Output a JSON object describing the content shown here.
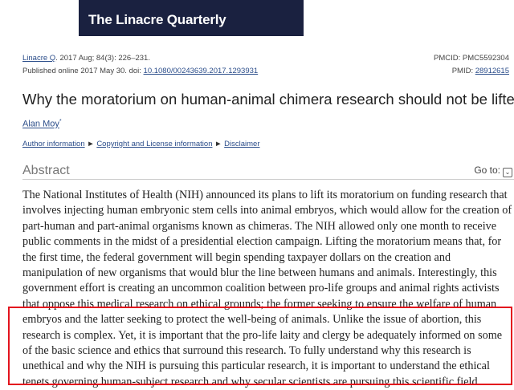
{
  "journal_banner": "The Linacre Quarterly",
  "citation": {
    "journal_link": "Linacre Q",
    "journal_rest": ". 2017 Aug; 84(3): 226–231.",
    "published_prefix": "Published online 2017 May 30. doi: ",
    "doi": "10.1080/00243639.2017.1293931",
    "pmcid": "PMCID: PMC5592304",
    "pmid_label": "PMID: ",
    "pmid": "28912615"
  },
  "article_title": "Why the moratorium on human-animal chimera research should not be lifted",
  "author": "Alan Moy",
  "author_mark": "*",
  "links": {
    "author_info": "Author information",
    "copyright": "Copyright and License information",
    "disclaimer": "Disclaimer",
    "separator": " ► "
  },
  "abstract": {
    "heading": "Abstract",
    "goto_label": "Go to:",
    "goto_icon": "chevron-down-icon",
    "lines": [
      "The National Institutes of Health (NIH) announced its plans to lift its moratorium on funding research that",
      "involves injecting human embryonic stem cells into animal embryos, which would allow for the creation of",
      "part-human and part-animal organisms known as chimeras. The NIH allowed only one month to receive",
      "public comments in the midst of a presidential election campaign. Lifting the moratorium means that, for",
      "the first time, the federal government will begin spending taxpayer dollars on the creation and",
      "manipulation of new organisms that would blur the line between humans and animals. Interestingly, this",
      "government effort is creating an uncommon coalition between pro-life groups and animal rights activists",
      "that oppose this medical research on ethical grounds; the former seeking to ensure the welfare of human",
      "embryos and the latter seeking to protect the well-being of animals. Unlike the issue of abortion, this",
      "research is complex. Yet, it is important that the pro-life laity and clergy be adequately informed on some",
      "of the basic science and ethics that surround this research. To fully understand why this research is",
      "unethical and why the NIH is pursuing this particular research, it is important to understand the ethical",
      "tenets governing human-subject research and why secular scientists are pursuing this scientific field."
    ]
  },
  "highlight_color": "#e3141e"
}
